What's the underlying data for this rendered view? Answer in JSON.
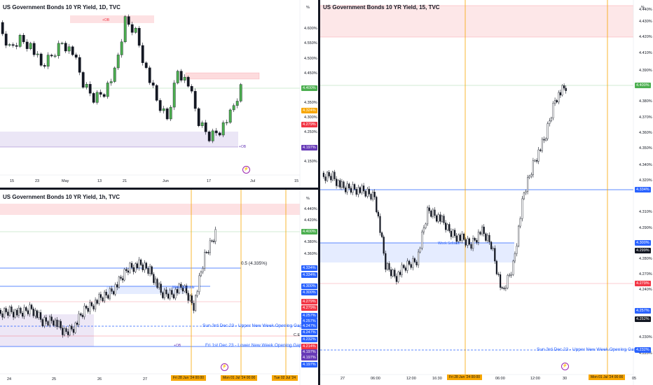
{
  "panels": {
    "daily": {
      "title": "US Government Bonds 10 YR Yield, 1D, TVC",
      "price_axis": [
        "4.600%",
        "4.550%",
        "4.500%",
        "4.450%",
        "4.350%",
        "4.300%",
        "4.250%",
        "4.150%"
      ],
      "price_tags": [
        {
          "text": "4.400%",
          "color": "#4caf50"
        },
        {
          "text": "4.324%",
          "color": "#f7a600"
        },
        {
          "text": "4.279%",
          "color": "#f23645"
        },
        {
          "text": "4.197%",
          "color": "#673ab7"
        }
      ],
      "time_axis": [
        "15",
        "23",
        "May",
        "13",
        "21",
        "Jun",
        "17",
        "Jul",
        "15"
      ],
      "ob_labels": [
        "+OB",
        "+OB"
      ],
      "currency": "%"
    },
    "hourly": {
      "title": "US Government Bonds 10 YR Yield, 1h, TVC",
      "price_axis": [
        "4.440%",
        "4.420%",
        "4.380%",
        "4.360%"
      ],
      "price_tags": [
        {
          "text": "4.400%",
          "color": "#4caf50"
        },
        {
          "text": "4.334%",
          "color": "#2962ff"
        },
        {
          "text": "4.334%",
          "color": "#2962ff"
        },
        {
          "text": "4.300%",
          "color": "#2962ff"
        },
        {
          "text": "4.300%",
          "color": "#2962ff"
        },
        {
          "text": "4.279%",
          "color": "#f23645"
        },
        {
          "text": "4.279%",
          "color": "#f23645"
        },
        {
          "text": "4.257%",
          "color": "#2962ff"
        },
        {
          "text": "4.257%",
          "color": "#2962ff"
        },
        {
          "text": "4.247%",
          "color": "#2962ff"
        },
        {
          "text": "4.247%",
          "color": "#2962ff"
        },
        {
          "text": "4.232%",
          "color": "#2962ff"
        },
        {
          "text": "4.214%",
          "color": "#f23645"
        },
        {
          "text": "4.197%",
          "color": "#673ab7"
        },
        {
          "text": "4.197%",
          "color": "#673ab7"
        },
        {
          "text": "4.197%",
          "color": "#2962ff"
        }
      ],
      "annotations": {
        "fib": "0.5 (4.335%)",
        "week_selside": "Week Sellside",
        "upper_gap": "Sun 3rd Dec 23 - Upper New Week Opening Gap",
        "lower_gap": "Fri 1st Dec 23 - Lower New Week Opening Gap",
        "ce": "C.E",
        "ob": "+OB"
      },
      "time_axis": [
        "24",
        "25",
        "26",
        "27"
      ],
      "date_labels": [
        "Fri 28 Jun '24  00:00",
        "Mon 01 Jul '24  00:00",
        "Tue 02 Jul '24"
      ],
      "currency": "%"
    },
    "m15": {
      "title": "US Government Bonds 10 YR Yield, 15, TVC",
      "price_axis": [
        "4.440%",
        "4.430%",
        "4.420%",
        "4.410%",
        "4.390%",
        "4.380%",
        "4.370%",
        "4.360%",
        "4.350%",
        "4.340%",
        "4.320%",
        "4.310%",
        "4.290%",
        "4.280%",
        "4.270%",
        "4.240%",
        "4.230%",
        "4.220%"
      ],
      "price_tags": [
        {
          "text": "4.400%",
          "color": "#4caf50"
        },
        {
          "text": "4.334%",
          "color": "#2962ff"
        },
        {
          "text": "4.300%",
          "color": "#2962ff"
        },
        {
          "text": "4.299%",
          "color": "#131722"
        },
        {
          "text": "4.279%",
          "color": "#f23645"
        },
        {
          "text": "4.257%",
          "color": "#2962ff"
        },
        {
          "text": "4.252%",
          "color": "#131722"
        },
        {
          "text": "4.232%",
          "color": "#2962ff"
        }
      ],
      "annotations": {
        "week_selside": "Week Sellside",
        "upper_gap": "Sun 3rd Dec 23 - Upper New Week Opening Gap"
      },
      "time_axis": [
        "27",
        "06:00",
        "12:00",
        "16:30",
        "06:00",
        "12:00",
        "30",
        "05"
      ],
      "date_labels": [
        "Fri 28 Jun '24  00:00",
        "Mon 01 Jul '24  00:00"
      ],
      "currency": "%"
    }
  }
}
